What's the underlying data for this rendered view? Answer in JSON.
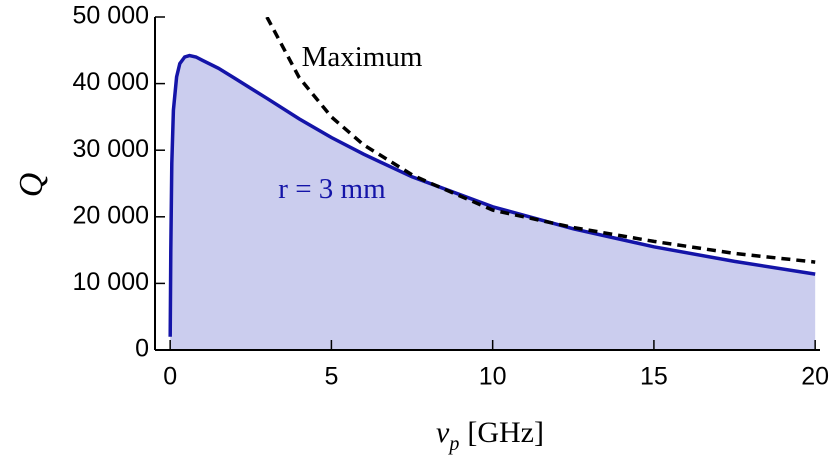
{
  "chart_data": {
    "type": "line",
    "y_label": "Q",
    "x_label_symbol": "ν",
    "x_label_subscript": "p",
    "x_label_unit": "[GHz]",
    "xlim": [
      -0.47,
      20.15
    ],
    "ylim": [
      0,
      50000
    ],
    "xticks": [
      0,
      5,
      10,
      15,
      20
    ],
    "yticks": [
      0,
      {
        "value": 10000,
        "label": "10 000"
      },
      {
        "value": 20000,
        "label": "20 000"
      },
      {
        "value": 30000,
        "label": "30 000"
      },
      {
        "value": 40000,
        "label": "40 000"
      },
      {
        "value": 50000,
        "label": "50 000"
      }
    ],
    "series": [
      {
        "name": "r = 3 mm",
        "color": "#1414a8",
        "fill": "#cbcdee",
        "dashed": false,
        "x": [
          0,
          0.02,
          0.05,
          0.1,
          0.2,
          0.3,
          0.45,
          0.6,
          0.8,
          1,
          1.5,
          2,
          3,
          4,
          5,
          6,
          7.5,
          10,
          12.5,
          15,
          17.5,
          20
        ],
        "values": [
          2000,
          15000,
          28000,
          36000,
          41000,
          43000,
          44000,
          44200,
          44000,
          43500,
          42300,
          40800,
          37800,
          34700,
          31900,
          29400,
          26000,
          21500,
          18200,
          15500,
          13300,
          11400
        ]
      },
      {
        "name": "Maximum",
        "color": "#000000",
        "dashed": true,
        "x": [
          3,
          4,
          5,
          6,
          7.5,
          8,
          10,
          12.5,
          15,
          17.5,
          20
        ],
        "values": [
          50000,
          40900,
          35000,
          30800,
          26300,
          25200,
          21000,
          18400,
          16300,
          14500,
          13200
        ]
      }
    ]
  }
}
